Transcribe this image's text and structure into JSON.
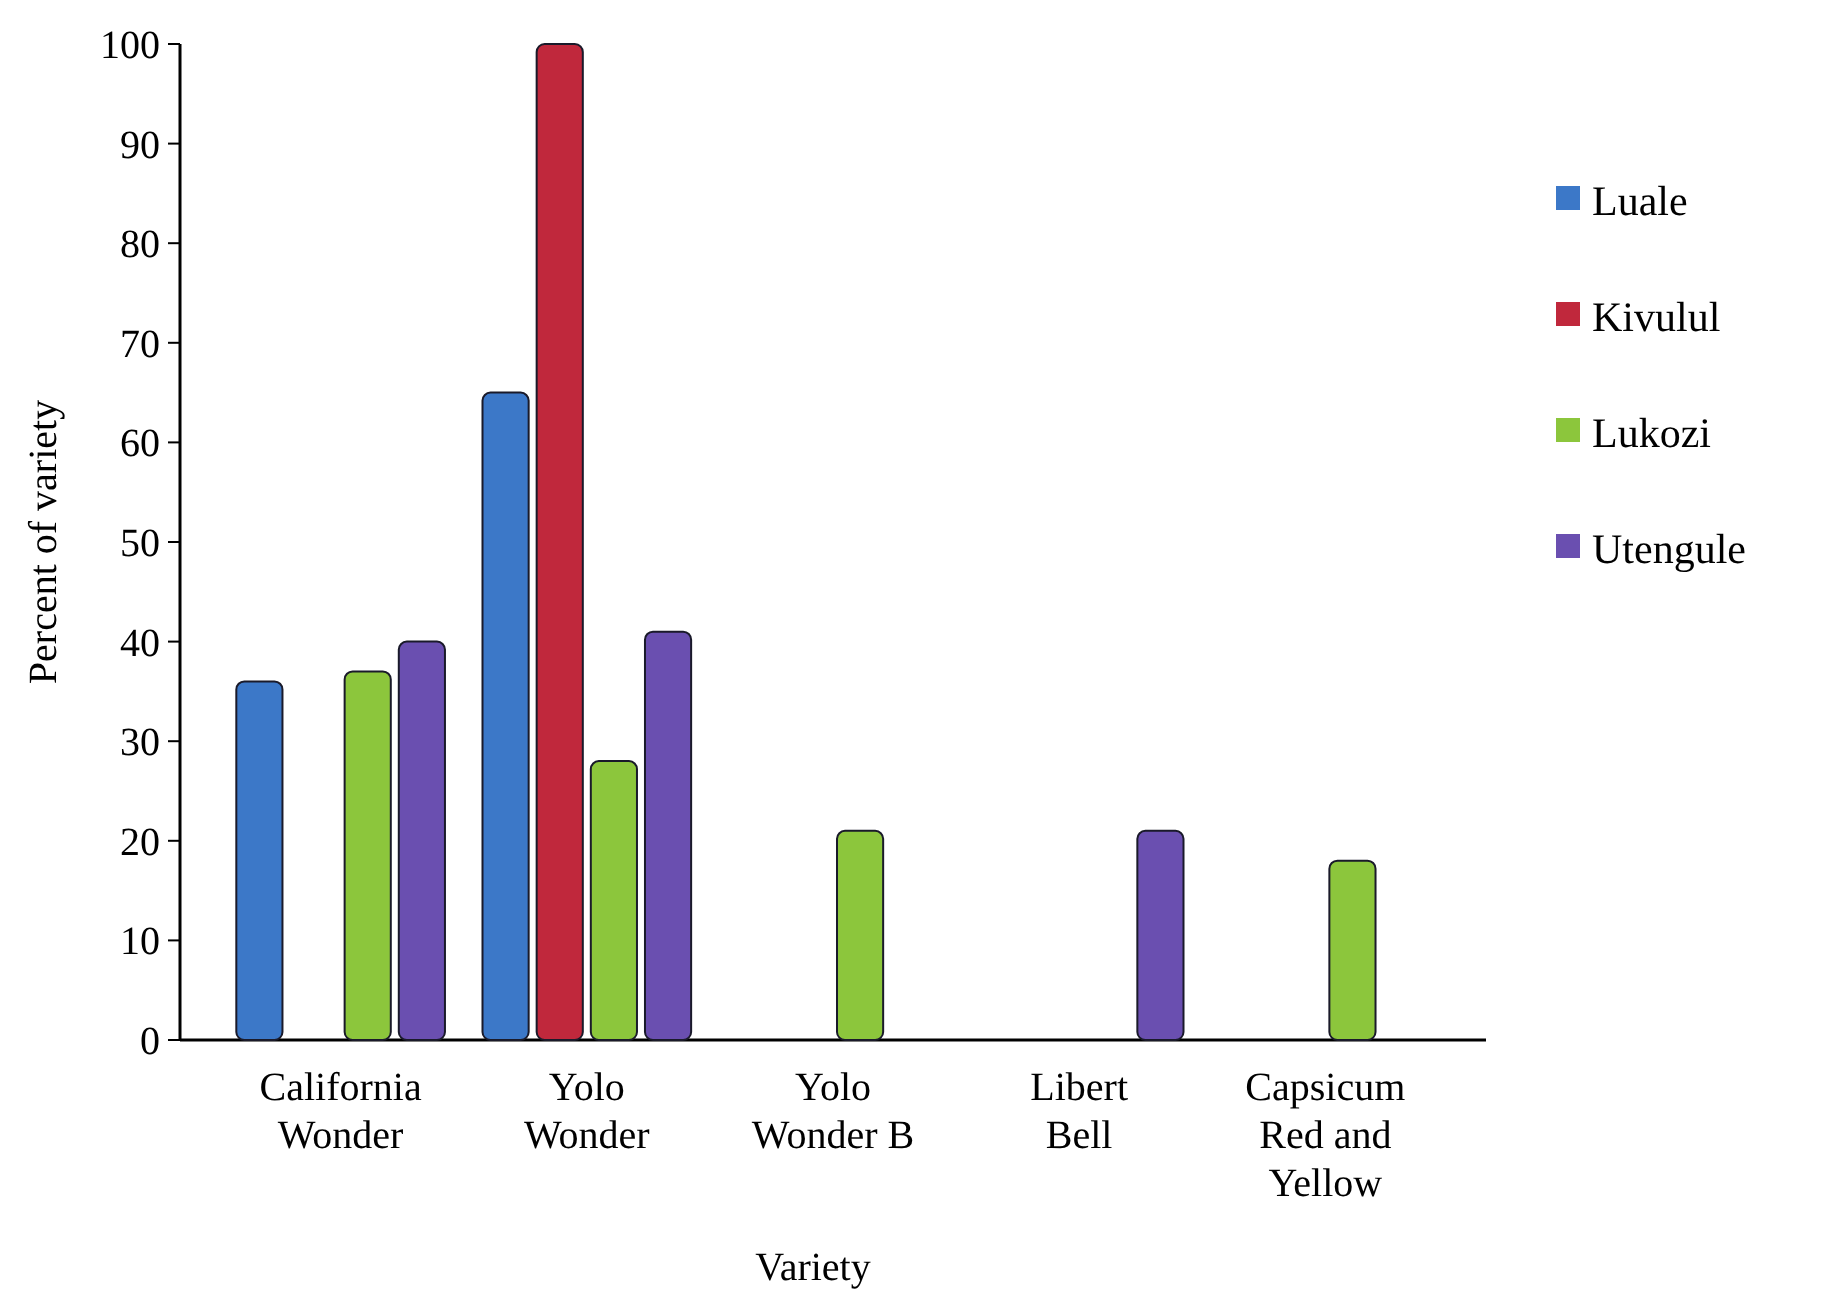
{
  "chart_data": {
    "type": "bar",
    "xlabel": "Variety",
    "ylabel": "Percent of variety",
    "categories": [
      "California Wonder",
      "Yolo Wonder",
      "Yolo Wonder B",
      "Libert Bell",
      "Capsicum Red and Yellow"
    ],
    "series": [
      {
        "name": "Luale",
        "color": "#3c78c8",
        "values": [
          36,
          65,
          0,
          0,
          0
        ]
      },
      {
        "name": "Kivulul",
        "color": "#c0283c",
        "values": [
          0,
          100,
          0,
          0,
          0
        ]
      },
      {
        "name": "Lukozi",
        "color": "#8cc63c",
        "values": [
          37,
          28,
          21,
          0,
          18
        ]
      },
      {
        "name": "Utengule",
        "color": "#6a4fb0",
        "values": [
          40,
          41,
          0,
          21,
          0
        ]
      }
    ],
    "ylim": [
      0,
      100
    ],
    "yticks": [
      0,
      10,
      20,
      30,
      40,
      50,
      60,
      70,
      80,
      90,
      100
    ],
    "legend": "right"
  }
}
